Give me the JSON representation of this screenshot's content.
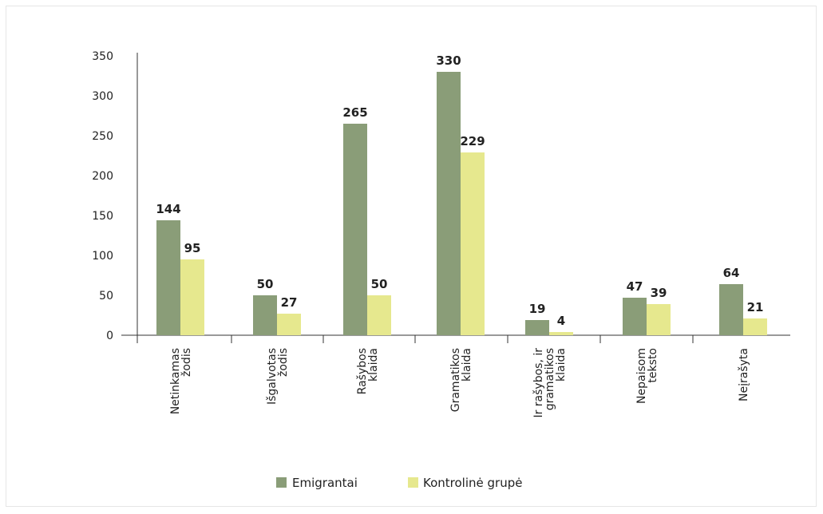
{
  "chart_data": {
    "type": "bar",
    "categories": [
      [
        "Netinkamas",
        "žodis"
      ],
      [
        "Išgalvotas",
        "žodis"
      ],
      [
        "Rašybos",
        "klaida"
      ],
      [
        "Gramatikos",
        "klaida"
      ],
      [
        "Ir rašybos, ir",
        "gramatikos",
        "klaida"
      ],
      [
        "Nepaisom",
        "teksto"
      ],
      [
        "Neįrašyta"
      ]
    ],
    "series": [
      {
        "name": "Emigrantai",
        "values": [
          144,
          50,
          265,
          330,
          19,
          47,
          64
        ],
        "color": "#8a9d78"
      },
      {
        "name": "Kontrolinė grupė",
        "values": [
          95,
          27,
          50,
          229,
          4,
          39,
          21
        ],
        "color": "#e6e88e"
      }
    ],
    "ylim": [
      0,
      350
    ],
    "yticks": [
      0,
      50,
      100,
      150,
      200,
      250,
      300,
      350
    ],
    "grid": false,
    "legend": "bottom-center"
  }
}
